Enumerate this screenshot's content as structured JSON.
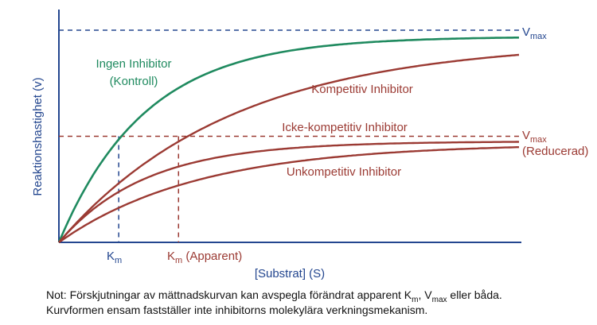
{
  "colors": {
    "axis": "#23468f",
    "control": "#1f8a5f",
    "inhibited": "#9b3a33",
    "text": "#111111"
  },
  "chart_data": {
    "type": "line",
    "title": "",
    "xlabel": "[Substrat] (S)",
    "ylabel": "Reaktionshastighet (v)",
    "xlim": [
      0,
      100
    ],
    "ylim": [
      0,
      100
    ],
    "grid": false,
    "vmax": {
      "label_main": "V",
      "label_sub": "max",
      "value": 100
    },
    "vmax_reduced": {
      "label_main": "V",
      "label_sub": "max",
      "label_note": "(Reducerad)",
      "value": 50
    },
    "km": {
      "label_main": "K",
      "label_sub": "m",
      "value": 13
    },
    "km_apparent": {
      "label_main": "K",
      "label_sub": "m",
      "label_suffix": " (Apparent)",
      "value": 26
    },
    "series": [
      {
        "name": "Ingen Inhibitor",
        "name2": "(Kontroll)",
        "vmax": 97,
        "k": 13
      },
      {
        "name": "Kompetitiv Inhibitor",
        "vmax": 95,
        "k": 26
      },
      {
        "name": "Icke-kompetitiv Inhibitor",
        "vmax": 47.6,
        "k": 13
      },
      {
        "name": "Unkompetitiv Inhibitor",
        "vmax": 46.6,
        "k": 21
      }
    ]
  },
  "note": {
    "line1_a": "Not: Förskjutningar av mättnadskurvan kan avspegla förändrat apparent K",
    "line1_sub1": "m",
    "line1_b": ", V",
    "line1_sub2": "max",
    "line1_c": " eller båda.",
    "line2": "Kurvformen ensam fastställer inte inhibitorns molekylära verkningsmekanism."
  }
}
